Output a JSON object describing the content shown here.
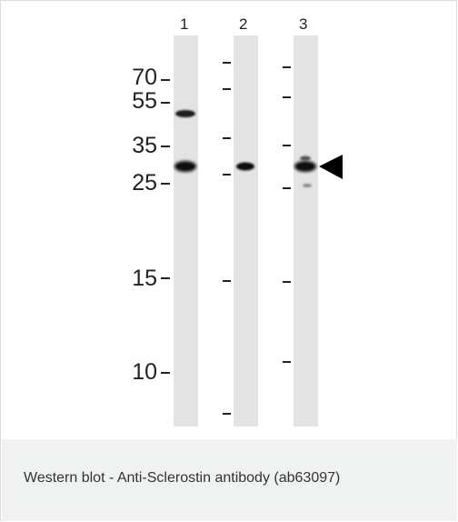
{
  "blot": {
    "lanes": [
      {
        "number": "1"
      },
      {
        "number": "2"
      },
      {
        "number": "3"
      }
    ],
    "mw_markers": [
      "70",
      "55",
      "35",
      "25",
      "15",
      "10"
    ],
    "arrow": "arrowhead-left"
  },
  "caption": "Western blot - Anti-Sclerostin antibody (ab63097)"
}
